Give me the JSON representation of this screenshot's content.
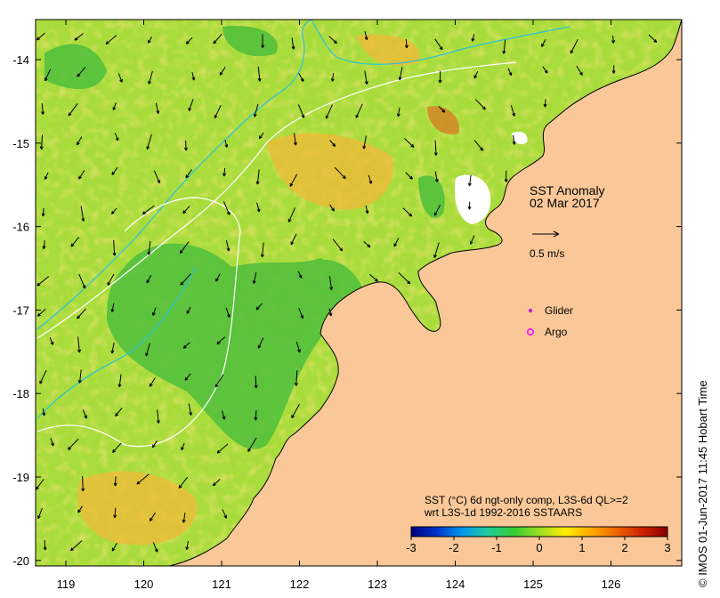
{
  "map": {
    "title": "SST Anomaly",
    "date": "02 Mar 2017",
    "scale_label": "0.5 m/s",
    "legend": {
      "glider_label": "Glider",
      "argo_label": "Argo",
      "glider_color": "#cc22cc",
      "argo_color": "#ee22ee"
    },
    "colorbar": {
      "line1": "SST (°C) 6d ngt-only comp, L3S-6d QL>=2",
      "line2": "wrt L3S-1d 1992-2016 SSTAARS",
      "ticks": [
        "-3",
        "-2",
        "-1",
        "0",
        "1",
        "2",
        "3"
      ],
      "colors": [
        "#00007a",
        "#0033cc",
        "#0099ee",
        "#22cc99",
        "#33cc33",
        "#99dd22",
        "#ffee00",
        "#ffaa00",
        "#ee6600",
        "#cc2200",
        "#880000"
      ]
    },
    "x_ticks": [
      "119",
      "120",
      "121",
      "122",
      "123",
      "124",
      "125",
      "126"
    ],
    "y_ticks": [
      "-14",
      "-15",
      "-16",
      "-17",
      "-18",
      "-19",
      "-20"
    ],
    "credit": "© IMOS 01-Jun-2017 11:45 Hobart Time",
    "colors": {
      "land": "#fac898",
      "ocean_base": "#a8dc3c",
      "warm": "#f3c23a",
      "cool": "#4fbe3c",
      "isobath_cyan": "#2dc3d6",
      "isobath_white": "#ffffff"
    }
  }
}
